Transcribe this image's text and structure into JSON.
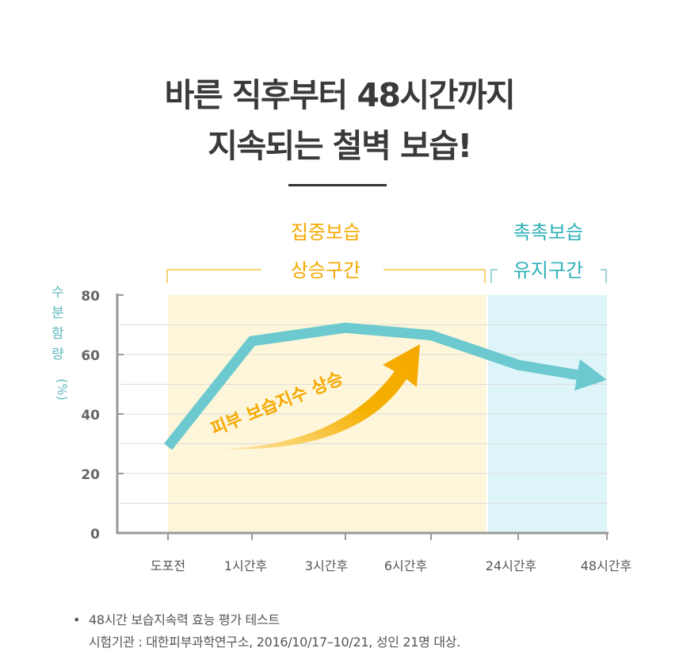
{
  "headline": {
    "line1": "바른 직후부터 48시간까지",
    "line2": "지속되는 철벽 보습!"
  },
  "colors": {
    "teal": "#6cc9cf",
    "orange": "#f5a800",
    "phase1_bg": "#fdf6da",
    "phase2_bg": "#ddf5f8",
    "axis": "#999999",
    "ylabel": "#5fb8be"
  },
  "chart_data": {
    "type": "line",
    "title": "",
    "xlabel": "",
    "ylabel": "수분함량",
    "ylabel_unit": "(%)",
    "categories": [
      "도포전",
      "1시간후",
      "3시간후",
      "6시간후",
      "24시간후",
      "48시간후"
    ],
    "series": [
      {
        "name": "수분함량",
        "values": [
          29,
          64.5,
          69,
          66.5,
          56.5,
          51.5
        ]
      }
    ],
    "ylim": [
      0,
      80
    ],
    "yticks": [
      0,
      20,
      40,
      60,
      80
    ],
    "grid": true,
    "phases": [
      {
        "line1": "집중보습",
        "line2": "상승구간"
      },
      {
        "line1": "촉촉보습",
        "line2": "유지구간"
      }
    ],
    "annotation": "피부 보습지수 상승"
  },
  "footnote": {
    "bullet": "•",
    "line1": "48시간 보습지속력 효능 평가 테스트",
    "line2": "시험기관 : 대한피부과학연구소, 2016/10/17–10/21, 성인 21명 대상."
  }
}
